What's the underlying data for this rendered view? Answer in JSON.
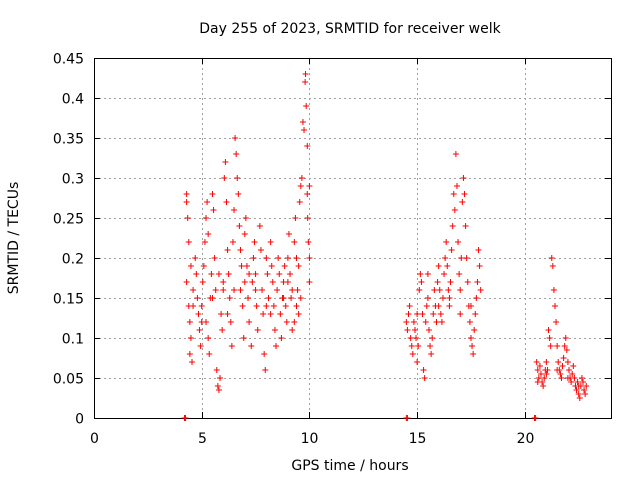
{
  "chart_data": {
    "type": "scatter",
    "title": "Day 255 of 2023, SRMTID for receiver welk",
    "xlabel": "GPS time / hours",
    "ylabel": "SRMTID / TECUs",
    "xlim": [
      0,
      24
    ],
    "ylim": [
      0,
      0.45
    ],
    "xticks": [
      0,
      5,
      10,
      15,
      20
    ],
    "xtick_labels": [
      "0",
      "5",
      "10",
      "15",
      "20"
    ],
    "yticks": [
      0,
      0.05,
      0.1,
      0.15,
      0.2,
      0.25,
      0.3,
      0.35,
      0.4,
      0.45
    ],
    "ytick_labels": [
      "0",
      "0.05",
      "0.1",
      "0.15",
      "0.2",
      "0.25",
      "0.3",
      "0.35",
      "0.4",
      "0.45"
    ],
    "grid": true,
    "legend": "none",
    "marker": "+",
    "color": "#ff0000",
    "series": [
      {
        "name": "SRMTID",
        "points": [
          [
            4.2,
            0.0
          ],
          [
            4.25,
            0.0
          ],
          [
            14.5,
            0.0
          ],
          [
            14.55,
            0.0
          ],
          [
            20.45,
            0.0
          ],
          [
            20.5,
            0.0
          ],
          [
            4.3,
            0.28
          ],
          [
            4.3,
            0.27
          ],
          [
            4.35,
            0.25
          ],
          [
            4.4,
            0.22
          ],
          [
            4.3,
            0.17
          ],
          [
            4.4,
            0.14
          ],
          [
            4.45,
            0.12
          ],
          [
            4.5,
            0.1
          ],
          [
            4.45,
            0.08
          ],
          [
            4.55,
            0.07
          ],
          [
            4.5,
            0.19
          ],
          [
            4.6,
            0.16
          ],
          [
            4.7,
            0.2
          ],
          [
            4.75,
            0.18
          ],
          [
            4.8,
            0.15
          ],
          [
            4.85,
            0.13
          ],
          [
            4.9,
            0.11
          ],
          [
            4.95,
            0.09
          ],
          [
            5.0,
            0.14
          ],
          [
            5.05,
            0.17
          ],
          [
            5.1,
            0.19
          ],
          [
            5.15,
            0.22
          ],
          [
            5.2,
            0.25
          ],
          [
            5.25,
            0.27
          ],
          [
            5.3,
            0.23
          ],
          [
            5.2,
            0.12
          ],
          [
            5.3,
            0.1
          ],
          [
            5.35,
            0.08
          ],
          [
            5.4,
            0.15
          ],
          [
            5.45,
            0.18
          ],
          [
            5.5,
            0.28
          ],
          [
            5.55,
            0.26
          ],
          [
            5.6,
            0.2
          ],
          [
            5.65,
            0.16
          ],
          [
            5.7,
            0.06
          ],
          [
            5.75,
            0.04
          ],
          [
            5.8,
            0.035
          ],
          [
            5.85,
            0.05
          ],
          [
            5.9,
            0.13
          ],
          [
            5.95,
            0.11
          ],
          [
            6.0,
            0.16
          ],
          [
            6.05,
            0.3
          ],
          [
            6.1,
            0.32
          ],
          [
            6.15,
            0.27
          ],
          [
            6.2,
            0.21
          ],
          [
            6.25,
            0.18
          ],
          [
            6.3,
            0.15
          ],
          [
            6.35,
            0.12
          ],
          [
            6.4,
            0.09
          ],
          [
            6.45,
            0.22
          ],
          [
            6.5,
            0.26
          ],
          [
            6.55,
            0.35
          ],
          [
            6.6,
            0.33
          ],
          [
            6.65,
            0.3
          ],
          [
            6.7,
            0.28
          ],
          [
            6.75,
            0.24
          ],
          [
            6.8,
            0.21
          ],
          [
            6.85,
            0.19
          ],
          [
            6.9,
            0.14
          ],
          [
            6.95,
            0.1
          ],
          [
            7.0,
            0.23
          ],
          [
            7.05,
            0.25
          ],
          [
            7.1,
            0.19
          ],
          [
            7.15,
            0.15
          ],
          [
            7.2,
            0.12
          ],
          [
            7.3,
            0.09
          ],
          [
            7.35,
            0.17
          ],
          [
            7.4,
            0.2
          ],
          [
            7.45,
            0.22
          ],
          [
            7.5,
            0.18
          ],
          [
            7.55,
            0.14
          ],
          [
            7.6,
            0.11
          ],
          [
            7.7,
            0.24
          ],
          [
            7.75,
            0.21
          ],
          [
            7.8,
            0.16
          ],
          [
            7.85,
            0.13
          ],
          [
            7.9,
            0.08
          ],
          [
            7.95,
            0.06
          ],
          [
            8.0,
            0.2
          ],
          [
            8.05,
            0.18
          ],
          [
            8.1,
            0.15
          ],
          [
            8.2,
            0.22
          ],
          [
            8.25,
            0.19
          ],
          [
            8.3,
            0.17
          ],
          [
            8.35,
            0.14
          ],
          [
            8.4,
            0.11
          ],
          [
            8.45,
            0.09
          ],
          [
            8.5,
            0.16
          ],
          [
            8.55,
            0.2
          ],
          [
            8.6,
            0.18
          ],
          [
            8.65,
            0.13
          ],
          [
            8.7,
            0.1
          ],
          [
            8.75,
            0.15
          ],
          [
            8.8,
            0.17
          ],
          [
            8.85,
            0.19
          ],
          [
            8.9,
            0.14
          ],
          [
            8.95,
            0.12
          ],
          [
            9.0,
            0.2
          ],
          [
            9.05,
            0.23
          ],
          [
            9.1,
            0.18
          ],
          [
            9.15,
            0.15
          ],
          [
            9.2,
            0.11
          ],
          [
            9.3,
            0.22
          ],
          [
            9.35,
            0.25
          ],
          [
            9.4,
            0.2
          ],
          [
            9.45,
            0.16
          ],
          [
            9.5,
            0.13
          ],
          [
            9.55,
            0.27
          ],
          [
            9.6,
            0.29
          ],
          [
            9.65,
            0.3
          ],
          [
            9.7,
            0.37
          ],
          [
            9.75,
            0.36
          ],
          [
            9.8,
            0.42
          ],
          [
            9.82,
            0.43
          ],
          [
            9.85,
            0.39
          ],
          [
            9.9,
            0.34
          ],
          [
            9.9,
            0.28
          ],
          [
            9.92,
            0.25
          ],
          [
            9.95,
            0.22
          ],
          [
            10.0,
            0.2
          ],
          [
            10.0,
            0.29
          ],
          [
            10.0,
            0.17
          ],
          [
            9.6,
            0.15
          ],
          [
            9.5,
            0.19
          ],
          [
            9.4,
            0.14
          ],
          [
            9.3,
            0.12
          ],
          [
            9.2,
            0.16
          ],
          [
            9.0,
            0.17
          ],
          [
            8.0,
            0.14
          ],
          [
            7.5,
            0.16
          ],
          [
            7.0,
            0.17
          ],
          [
            6.5,
            0.16
          ],
          [
            6.0,
            0.17
          ],
          [
            5.5,
            0.15
          ],
          [
            5.0,
            0.12
          ],
          [
            4.6,
            0.14
          ],
          [
            5.8,
            0.18
          ],
          [
            6.2,
            0.13
          ],
          [
            6.8,
            0.16
          ],
          [
            7.2,
            0.18
          ],
          [
            8.2,
            0.13
          ],
          [
            8.8,
            0.15
          ],
          [
            14.5,
            0.12
          ],
          [
            14.55,
            0.11
          ],
          [
            14.6,
            0.13
          ],
          [
            14.65,
            0.14
          ],
          [
            14.7,
            0.1
          ],
          [
            14.75,
            0.09
          ],
          [
            14.8,
            0.08
          ],
          [
            14.85,
            0.12
          ],
          [
            14.9,
            0.11
          ],
          [
            14.95,
            0.1
          ],
          [
            15.0,
            0.07
          ],
          [
            15.05,
            0.09
          ],
          [
            15.1,
            0.16
          ],
          [
            15.15,
            0.18
          ],
          [
            15.2,
            0.17
          ],
          [
            15.25,
            0.13
          ],
          [
            15.3,
            0.06
          ],
          [
            15.35,
            0.05
          ],
          [
            15.4,
            0.12
          ],
          [
            15.45,
            0.14
          ],
          [
            15.5,
            0.15
          ],
          [
            15.55,
            0.11
          ],
          [
            15.6,
            0.09
          ],
          [
            15.65,
            0.08
          ],
          [
            15.7,
            0.1
          ],
          [
            15.75,
            0.13
          ],
          [
            15.8,
            0.16
          ],
          [
            15.85,
            0.14
          ],
          [
            15.9,
            0.12
          ],
          [
            15.95,
            0.17
          ],
          [
            16.0,
            0.19
          ],
          [
            16.05,
            0.16
          ],
          [
            16.1,
            0.13
          ],
          [
            16.15,
            0.12
          ],
          [
            16.2,
            0.15
          ],
          [
            16.25,
            0.18
          ],
          [
            16.3,
            0.2
          ],
          [
            16.35,
            0.22
          ],
          [
            16.4,
            0.19
          ],
          [
            16.45,
            0.16
          ],
          [
            16.5,
            0.14
          ],
          [
            16.55,
            0.17
          ],
          [
            16.6,
            0.21
          ],
          [
            16.65,
            0.24
          ],
          [
            16.7,
            0.28
          ],
          [
            16.75,
            0.26
          ],
          [
            16.8,
            0.33
          ],
          [
            16.85,
            0.29
          ],
          [
            16.9,
            0.22
          ],
          [
            16.95,
            0.18
          ],
          [
            17.0,
            0.16
          ],
          [
            17.05,
            0.2
          ],
          [
            17.1,
            0.27
          ],
          [
            17.15,
            0.3
          ],
          [
            17.2,
            0.28
          ],
          [
            17.25,
            0.24
          ],
          [
            17.3,
            0.2
          ],
          [
            17.35,
            0.17
          ],
          [
            17.4,
            0.14
          ],
          [
            17.45,
            0.12
          ],
          [
            17.5,
            0.1
          ],
          [
            17.55,
            0.09
          ],
          [
            17.6,
            0.08
          ],
          [
            17.65,
            0.11
          ],
          [
            17.7,
            0.13
          ],
          [
            17.75,
            0.15
          ],
          [
            17.8,
            0.17
          ],
          [
            17.85,
            0.21
          ],
          [
            17.9,
            0.19
          ],
          [
            17.95,
            0.16
          ],
          [
            15.0,
            0.13
          ],
          [
            15.5,
            0.18
          ],
          [
            16.0,
            0.14
          ],
          [
            16.5,
            0.15
          ],
          [
            17.0,
            0.13
          ],
          [
            17.5,
            0.14
          ],
          [
            20.55,
            0.07
          ],
          [
            20.6,
            0.06
          ],
          [
            20.65,
            0.05
          ],
          [
            20.7,
            0.065
          ],
          [
            20.75,
            0.055
          ],
          [
            20.8,
            0.045
          ],
          [
            20.85,
            0.04
          ],
          [
            20.9,
            0.05
          ],
          [
            20.95,
            0.06
          ],
          [
            21.0,
            0.07
          ],
          [
            21.05,
            0.06
          ],
          [
            21.1,
            0.11
          ],
          [
            21.15,
            0.1
          ],
          [
            21.2,
            0.09
          ],
          [
            21.25,
            0.2
          ],
          [
            21.3,
            0.19
          ],
          [
            21.35,
            0.16
          ],
          [
            21.4,
            0.14
          ],
          [
            21.45,
            0.12
          ],
          [
            21.5,
            0.09
          ],
          [
            21.55,
            0.07
          ],
          [
            21.6,
            0.06
          ],
          [
            21.65,
            0.055
          ],
          [
            21.7,
            0.05
          ],
          [
            21.75,
            0.065
          ],
          [
            21.8,
            0.075
          ],
          [
            21.85,
            0.09
          ],
          [
            21.9,
            0.1
          ],
          [
            21.95,
            0.085
          ],
          [
            22.0,
            0.07
          ],
          [
            22.05,
            0.06
          ],
          [
            22.1,
            0.05
          ],
          [
            22.15,
            0.045
          ],
          [
            22.2,
            0.055
          ],
          [
            22.25,
            0.065
          ],
          [
            22.3,
            0.05
          ],
          [
            22.35,
            0.04
          ],
          [
            22.4,
            0.035
          ],
          [
            22.45,
            0.045
          ],
          [
            22.5,
            0.03
          ],
          [
            22.55,
            0.025
          ],
          [
            22.6,
            0.04
          ],
          [
            22.65,
            0.05
          ],
          [
            22.7,
            0.045
          ],
          [
            22.75,
            0.035
          ],
          [
            22.8,
            0.03
          ],
          [
            22.85,
            0.04
          ],
          [
            20.6,
            0.045
          ],
          [
            21.0,
            0.055
          ],
          [
            21.5,
            0.06
          ],
          [
            22.0,
            0.05
          ],
          [
            22.5,
            0.04
          ]
        ]
      }
    ]
  }
}
